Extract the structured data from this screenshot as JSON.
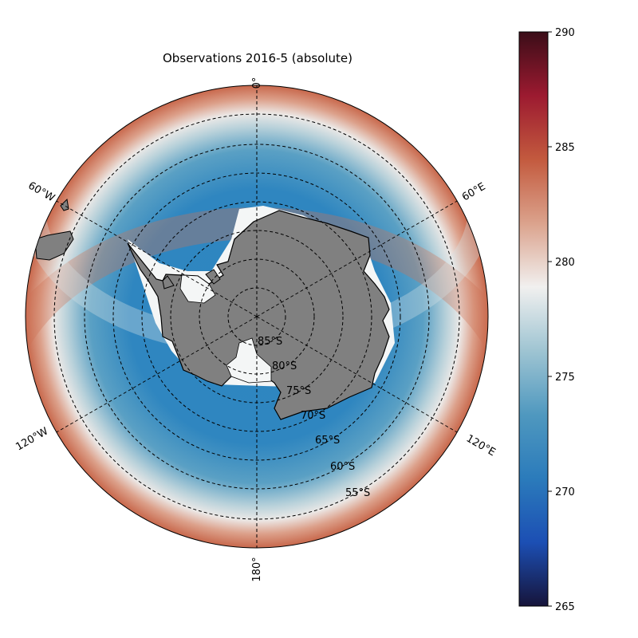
{
  "title": "Observations 2016-5 (absolute)",
  "map": {
    "projection": "south-polar-stereographic",
    "land_color": "#808080",
    "sea_ice_color": "#f4f6f6",
    "meridian_labels": [
      "0°",
      "60°E",
      "120°E",
      "180°",
      "120°W",
      "60°W"
    ],
    "parallel_labels": [
      "85°S",
      "80°S",
      "75°S",
      "70°S",
      "65°S",
      "60°S",
      "55°S"
    ]
  },
  "colorbar": {
    "min": 265,
    "max": 290,
    "ticks": [
      "290",
      "285",
      "280",
      "275",
      "270",
      "265"
    ],
    "colormap": [
      "#16143a",
      "#1c4fb4",
      "#2b7bbb",
      "#4f98bf",
      "#9ec4d2",
      "#f1f0ef",
      "#dba28c",
      "#c35a3e",
      "#9c1a30",
      "#3b0d18"
    ]
  }
}
